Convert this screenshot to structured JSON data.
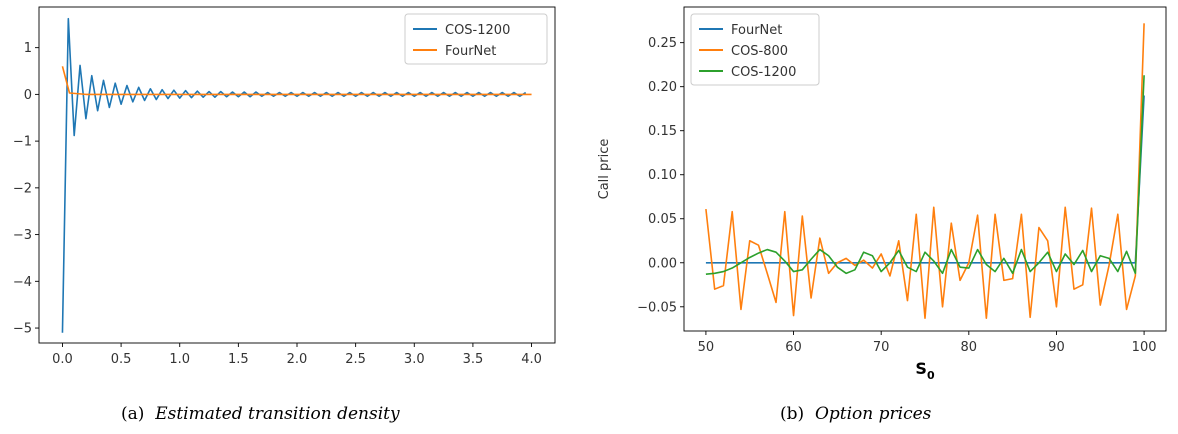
{
  "chart_data": [
    {
      "type": "line",
      "caption_label": "(a)",
      "caption_text": "Estimated transition density",
      "xlabel": "",
      "ylabel": "",
      "xlim": [
        -0.2,
        4.2
      ],
      "ylim": [
        -5.32,
        1.87
      ],
      "x_ticks": [
        0.0,
        0.5,
        1.0,
        1.5,
        2.0,
        2.5,
        3.0,
        3.5,
        4.0
      ],
      "x_tick_labels": [
        "0.0",
        "0.5",
        "1.0",
        "1.5",
        "2.0",
        "2.5",
        "3.0",
        "3.5",
        "4.0"
      ],
      "y_ticks": [
        1,
        0,
        -1,
        -2,
        -3,
        -4,
        -5
      ],
      "y_tick_labels": [
        "1",
        "0",
        "−1",
        "−2",
        "−3",
        "−4",
        "−5"
      ],
      "legend_position": "top-right",
      "grid": false,
      "series": [
        {
          "name": "COS-1200",
          "color": "#1f77b4",
          "points": [
            [
              0.0,
              -5.1
            ],
            [
              0.05,
              1.62
            ],
            [
              0.1,
              -0.88
            ],
            [
              0.15,
              0.62
            ],
            [
              0.2,
              -0.52
            ],
            [
              0.25,
              0.4
            ],
            [
              0.3,
              -0.35
            ],
            [
              0.35,
              0.3
            ],
            [
              0.4,
              -0.28
            ],
            [
              0.45,
              0.24
            ],
            [
              0.5,
              -0.21
            ],
            [
              0.55,
              0.19
            ],
            [
              0.6,
              -0.16
            ],
            [
              0.65,
              0.15
            ],
            [
              0.7,
              -0.13
            ],
            [
              0.75,
              0.12
            ],
            [
              0.8,
              -0.11
            ],
            [
              0.85,
              0.1
            ],
            [
              0.9,
              -0.09
            ],
            [
              0.95,
              0.09
            ],
            [
              1.0,
              -0.08
            ],
            [
              1.05,
              0.08
            ],
            [
              1.1,
              -0.07
            ],
            [
              1.15,
              0.07
            ],
            [
              1.2,
              -0.06
            ],
            [
              1.25,
              0.06
            ],
            [
              1.3,
              -0.06
            ],
            [
              1.35,
              0.06
            ],
            [
              1.4,
              -0.05
            ],
            [
              1.45,
              0.05
            ],
            [
              1.5,
              -0.05
            ],
            [
              1.55,
              0.05
            ],
            [
              1.6,
              -0.05
            ],
            [
              1.65,
              0.05
            ],
            [
              1.7,
              -0.04
            ],
            [
              1.75,
              0.04
            ],
            [
              1.8,
              -0.04
            ],
            [
              1.85,
              0.04
            ],
            [
              1.9,
              -0.04
            ],
            [
              1.95,
              0.04
            ],
            [
              2.0,
              -0.04
            ],
            [
              2.05,
              0.04
            ],
            [
              2.1,
              -0.04
            ],
            [
              2.15,
              0.04
            ],
            [
              2.2,
              -0.04
            ],
            [
              2.25,
              0.04
            ],
            [
              2.3,
              -0.04
            ],
            [
              2.35,
              0.04
            ],
            [
              2.4,
              -0.04
            ],
            [
              2.45,
              0.04
            ],
            [
              2.5,
              -0.04
            ],
            [
              2.55,
              0.04
            ],
            [
              2.6,
              -0.04
            ],
            [
              2.65,
              0.04
            ],
            [
              2.7,
              -0.04
            ],
            [
              2.75,
              0.04
            ],
            [
              2.8,
              -0.04
            ],
            [
              2.85,
              0.04
            ],
            [
              2.9,
              -0.04
            ],
            [
              2.95,
              0.04
            ],
            [
              3.0,
              -0.04
            ],
            [
              3.05,
              0.04
            ],
            [
              3.1,
              -0.04
            ],
            [
              3.15,
              0.04
            ],
            [
              3.2,
              -0.04
            ],
            [
              3.25,
              0.04
            ],
            [
              3.3,
              -0.04
            ],
            [
              3.35,
              0.04
            ],
            [
              3.4,
              -0.04
            ],
            [
              3.45,
              0.04
            ],
            [
              3.5,
              -0.04
            ],
            [
              3.55,
              0.04
            ],
            [
              3.6,
              -0.04
            ],
            [
              3.65,
              0.04
            ],
            [
              3.7,
              -0.04
            ],
            [
              3.75,
              0.04
            ],
            [
              3.8,
              -0.04
            ],
            [
              3.85,
              0.04
            ],
            [
              3.9,
              -0.04
            ],
            [
              3.95,
              0.04
            ]
          ]
        },
        {
          "name": "FourNet",
          "color": "#ff7f0e",
          "points": [
            [
              0.0,
              0.6
            ],
            [
              0.06,
              0.03
            ],
            [
              0.2,
              0.0
            ],
            [
              4.0,
              0.0
            ]
          ]
        }
      ]
    },
    {
      "type": "line",
      "caption_label": "(b)",
      "caption_text": "Option prices",
      "xlabel": "S",
      "xlabel_subscript": "0",
      "ylabel": "Call price",
      "xlim": [
        47.5,
        102.5
      ],
      "ylim": [
        -0.0775,
        0.2905
      ],
      "x_ticks": [
        50,
        60,
        70,
        80,
        90,
        100
      ],
      "x_tick_labels": [
        "50",
        "60",
        "70",
        "80",
        "90",
        "100"
      ],
      "y_ticks": [
        0.25,
        0.2,
        0.15,
        0.1,
        0.05,
        0.0,
        -0.05
      ],
      "y_tick_labels": [
        "0.25",
        "0.20",
        "0.15",
        "0.10",
        "0.05",
        "0.00",
        "−0.05"
      ],
      "legend_position": "top-left",
      "grid": false,
      "series": [
        {
          "name": "FourNet",
          "color": "#1f77b4",
          "points": [
            [
              50,
              0.0
            ],
            [
              98,
              0.0
            ],
            [
              99,
              0.0
            ],
            [
              100,
              0.19
            ]
          ]
        },
        {
          "name": "COS-800",
          "color": "#ff7f0e",
          "points": [
            [
              50,
              0.061
            ],
            [
              51,
              -0.03
            ],
            [
              52,
              -0.026
            ],
            [
              53,
              0.058
            ],
            [
              54,
              -0.053
            ],
            [
              55,
              0.025
            ],
            [
              56,
              0.02
            ],
            [
              57,
              -0.012
            ],
            [
              58,
              -0.045
            ],
            [
              59,
              0.058
            ],
            [
              60,
              -0.06
            ],
            [
              61,
              0.053
            ],
            [
              62,
              -0.04
            ],
            [
              63,
              0.028
            ],
            [
              64,
              -0.012
            ],
            [
              65,
              0.0
            ],
            [
              66,
              0.005
            ],
            [
              67,
              -0.003
            ],
            [
              68,
              0.003
            ],
            [
              69,
              -0.006
            ],
            [
              70,
              0.01
            ],
            [
              71,
              -0.015
            ],
            [
              72,
              0.025
            ],
            [
              73,
              -0.043
            ],
            [
              74,
              0.055
            ],
            [
              75,
              -0.063
            ],
            [
              76,
              0.063
            ],
            [
              77,
              -0.05
            ],
            [
              78,
              0.045
            ],
            [
              79,
              -0.02
            ],
            [
              80,
              0.0
            ],
            [
              81,
              0.054
            ],
            [
              82,
              -0.063
            ],
            [
              83,
              0.055
            ],
            [
              84,
              -0.02
            ],
            [
              85,
              -0.018
            ],
            [
              86,
              0.055
            ],
            [
              87,
              -0.062
            ],
            [
              88,
              0.04
            ],
            [
              89,
              0.025
            ],
            [
              90,
              -0.05
            ],
            [
              91,
              0.063
            ],
            [
              92,
              -0.03
            ],
            [
              93,
              -0.025
            ],
            [
              94,
              0.062
            ],
            [
              95,
              -0.048
            ],
            [
              96,
              -0.003
            ],
            [
              97,
              0.055
            ],
            [
              98,
              -0.053
            ],
            [
              99,
              -0.015
            ],
            [
              100,
              0.272
            ]
          ]
        },
        {
          "name": "COS-1200",
          "color": "#2ca02c",
          "points": [
            [
              50,
              -0.013
            ],
            [
              51,
              -0.012
            ],
            [
              52,
              -0.01
            ],
            [
              53,
              -0.006
            ],
            [
              54,
              0.0
            ],
            [
              55,
              0.006
            ],
            [
              56,
              0.011
            ],
            [
              57,
              0.015
            ],
            [
              58,
              0.012
            ],
            [
              59,
              0.002
            ],
            [
              60,
              -0.01
            ],
            [
              61,
              -0.008
            ],
            [
              62,
              0.004
            ],
            [
              63,
              0.015
            ],
            [
              64,
              0.008
            ],
            [
              65,
              -0.005
            ],
            [
              66,
              -0.012
            ],
            [
              67,
              -0.008
            ],
            [
              68,
              0.012
            ],
            [
              69,
              0.008
            ],
            [
              70,
              -0.01
            ],
            [
              71,
              0.0
            ],
            [
              72,
              0.014
            ],
            [
              73,
              -0.005
            ],
            [
              74,
              -0.01
            ],
            [
              75,
              0.012
            ],
            [
              76,
              0.002
            ],
            [
              77,
              -0.012
            ],
            [
              78,
              0.015
            ],
            [
              79,
              -0.005
            ],
            [
              80,
              -0.006
            ],
            [
              81,
              0.015
            ],
            [
              82,
              -0.002
            ],
            [
              83,
              -0.01
            ],
            [
              84,
              0.005
            ],
            [
              85,
              -0.012
            ],
            [
              86,
              0.015
            ],
            [
              87,
              -0.01
            ],
            [
              88,
              0.0
            ],
            [
              89,
              0.012
            ],
            [
              90,
              -0.01
            ],
            [
              91,
              0.01
            ],
            [
              92,
              -0.002
            ],
            [
              93,
              0.014
            ],
            [
              94,
              -0.01
            ],
            [
              95,
              0.008
            ],
            [
              96,
              0.005
            ],
            [
              97,
              -0.01
            ],
            [
              98,
              0.013
            ],
            [
              99,
              -0.012
            ],
            [
              100,
              0.213
            ]
          ]
        }
      ]
    }
  ]
}
